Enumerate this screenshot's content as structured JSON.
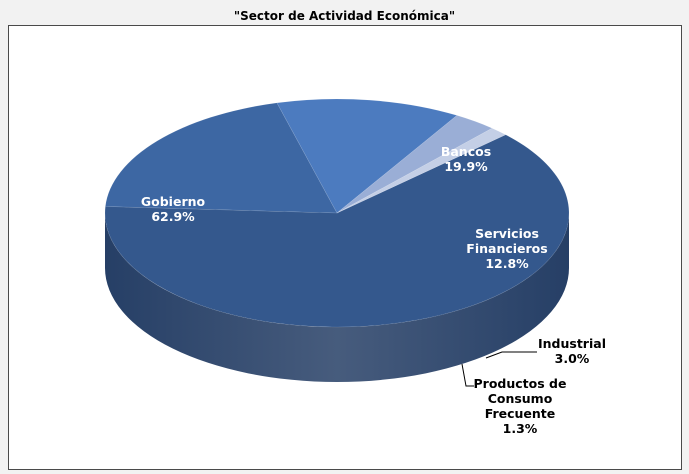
{
  "chart_data": {
    "type": "pie",
    "title": "\"Sector de Actividad Económica\"",
    "categories": [
      "Gobierno",
      "Bancos",
      "Servicios Financieros",
      "Industrial",
      "Productos de Consumo Frecuente"
    ],
    "values": [
      62.9,
      19.9,
      12.8,
      3.0,
      1.3
    ],
    "value_labels": [
      "62.9%",
      "19.9%",
      "12.8%",
      "3.0%",
      "1.3%"
    ],
    "label_lines": [
      [
        "Gobierno",
        "62.9%"
      ],
      [
        "Bancos",
        "19.9%"
      ],
      [
        "Servicios",
        "Financieros",
        "12.8%"
      ],
      [
        "Industrial",
        "3.0%"
      ],
      [
        "Productos de",
        "Consumo",
        "Frecuente",
        "1.3%"
      ]
    ],
    "colors": [
      "#34588d",
      "#3d67a3",
      "#4c7bbf",
      "#9aaed6",
      "#c4cfe6"
    ],
    "side_colors": [
      "#263f66",
      "#2b4a77",
      "#35598c",
      "#3b3f4f",
      "#6a6a70"
    ],
    "style": "3d-pie",
    "legend": "none"
  }
}
